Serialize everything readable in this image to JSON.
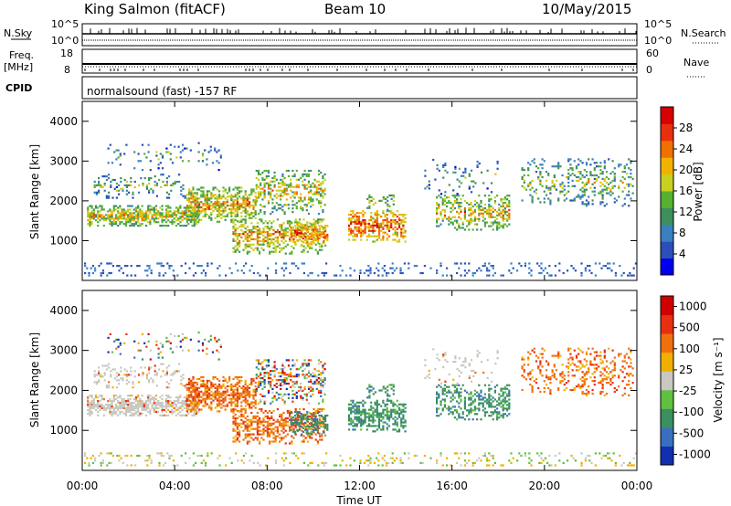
{
  "header": {
    "station": "King Salmon (fitACF)",
    "beam": "Beam 10",
    "date": "10/May/2015"
  },
  "top_panels": {
    "nsky": {
      "label": "N.Sky",
      "ticks": [
        "10^5",
        "10^0"
      ],
      "right_ticks": [
        "10^5",
        "10^0"
      ],
      "right_label": "N.Search"
    },
    "freq": {
      "label_line1": "Freq.",
      "label_line2": "[MHz]",
      "ticks": [
        "18",
        "8"
      ],
      "right_ticks": [
        "60",
        "0"
      ],
      "right_label": "Nave"
    },
    "cpid": {
      "label": "CPID",
      "value": "normalsound (fast) -157 RF"
    }
  },
  "chart_data": [
    {
      "type": "heatmap",
      "title": "",
      "ylabel": "Slant Range [km]",
      "xlabel": "",
      "ylim": [
        0,
        4500
      ],
      "yticks": [
        "1000",
        "2000",
        "3000",
        "4000"
      ],
      "colorbar": {
        "label": "Power [dB]",
        "ticks": [
          "4",
          "8",
          "12",
          "16",
          "20",
          "24",
          "28"
        ],
        "colors": [
          "#0000ee",
          "#2a4fb8",
          "#3a7fc0",
          "#3e8f5e",
          "#58b030",
          "#c8d020",
          "#f0b400",
          "#f07000",
          "#e83010",
          "#d80000"
        ]
      }
    },
    {
      "type": "heatmap",
      "title": "",
      "ylabel": "Slant Range [km]",
      "xlabel": "",
      "ylim": [
        0,
        4500
      ],
      "yticks": [
        "1000",
        "2000",
        "3000",
        "4000"
      ],
      "colorbar": {
        "label": "Velocity [m s⁻¹]",
        "ticks": [
          "1000",
          "500",
          "100",
          "25",
          "-25",
          "-100",
          "-500",
          "-1000"
        ],
        "colors": [
          "#1030b0",
          "#3a6fc0",
          "#3a9060",
          "#60c040",
          "#c8c8c0",
          "#f0b000",
          "#f07010",
          "#e83010",
          "#d00000"
        ]
      }
    }
  ],
  "xaxis": {
    "label": "Time UT",
    "ticks": [
      "00:00",
      "04:00",
      "08:00",
      "12:00",
      "16:00",
      "20:00",
      "00:00"
    ],
    "range_hours": [
      0,
      24
    ]
  }
}
